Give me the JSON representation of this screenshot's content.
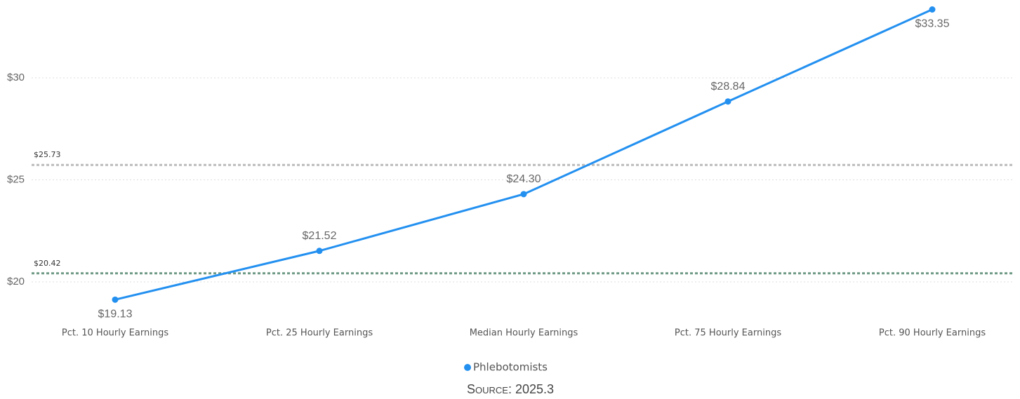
{
  "chart_data": {
    "type": "line",
    "categories": [
      "Pct. 10 Hourly Earnings",
      "Pct. 25 Hourly Earnings",
      "Median Hourly Earnings",
      "Pct. 75 Hourly Earnings",
      "Pct. 90 Hourly Earnings"
    ],
    "series": [
      {
        "name": "Phlebotomists",
        "color": "#2390f0",
        "values": [
          19.13,
          21.52,
          24.3,
          28.84,
          33.35
        ],
        "value_labels": [
          "$19.13",
          "$21.52",
          "$24.30",
          "$28.84",
          "$33.35"
        ]
      }
    ],
    "ylim": [
      18,
      33.8
    ],
    "yticks": [
      {
        "value": 20,
        "label": "$20"
      },
      {
        "value": 25,
        "label": "$25"
      },
      {
        "value": 30,
        "label": "$30"
      }
    ],
    "grid": true,
    "reference_lines": [
      {
        "value": 25.73,
        "label": "$25.73",
        "color": "#bbbbbb"
      },
      {
        "value": 20.42,
        "label": "$20.42",
        "color": "#6f9a85"
      }
    ],
    "legend": "bottom",
    "source": "Source: 2025.3"
  }
}
